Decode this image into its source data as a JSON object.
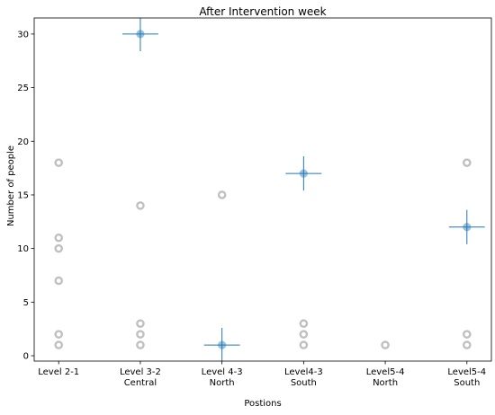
{
  "chart_data": {
    "type": "scatter",
    "title": "After Intervention week",
    "xlabel": "Postions",
    "ylabel": "Number of people",
    "ylim": [
      -0.5,
      31.5
    ],
    "yticks": [
      0,
      5,
      10,
      15,
      20,
      25,
      30
    ],
    "grid": false,
    "categories": [
      {
        "lines": [
          "Level 2-1"
        ]
      },
      {
        "lines": [
          "Level 3-2",
          "Central"
        ]
      },
      {
        "lines": [
          "Level 4-3",
          "North"
        ]
      },
      {
        "lines": [
          "Level4-3",
          "South"
        ]
      },
      {
        "lines": [
          "Level5-4",
          "North"
        ]
      },
      {
        "lines": [
          "Level5-4",
          "South"
        ]
      }
    ],
    "series": [
      {
        "role": "observations",
        "color": "#c0c0c0",
        "points": [
          {
            "x": 0,
            "y": 18
          },
          {
            "x": 0,
            "y": 11
          },
          {
            "x": 0,
            "y": 10
          },
          {
            "x": 0,
            "y": 7
          },
          {
            "x": 0,
            "y": 2
          },
          {
            "x": 0,
            "y": 1
          },
          {
            "x": 1,
            "y": 14
          },
          {
            "x": 1,
            "y": 3
          },
          {
            "x": 1,
            "y": 2
          },
          {
            "x": 1,
            "y": 1
          },
          {
            "x": 2,
            "y": 15
          },
          {
            "x": 3,
            "y": 3
          },
          {
            "x": 3,
            "y": 2
          },
          {
            "x": 3,
            "y": 1
          },
          {
            "x": 4,
            "y": 1
          },
          {
            "x": 5,
            "y": 18
          },
          {
            "x": 5,
            "y": 2
          },
          {
            "x": 5,
            "y": 1
          }
        ]
      },
      {
        "role": "estimate",
        "color": "#1f77b4",
        "points": [
          {
            "x": 1,
            "y": 30,
            "yerr": 1.6
          },
          {
            "x": 2,
            "y": 1,
            "yerr": 1.6
          },
          {
            "x": 3,
            "y": 17,
            "yerr": 1.6
          },
          {
            "x": 5,
            "y": 12,
            "yerr": 1.6
          }
        ],
        "xerr": 0.22
      }
    ]
  }
}
